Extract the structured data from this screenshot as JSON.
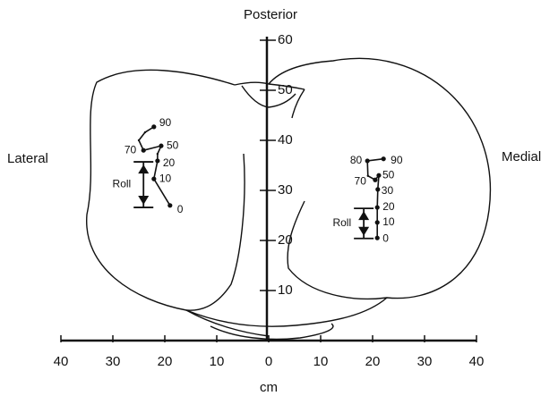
{
  "title_top": "Posterior",
  "left_label": "Lateral",
  "right_label": "Medial",
  "x_axis": {
    "label": "cm",
    "ticks": [
      {
        "value": -40,
        "label": "40"
      },
      {
        "value": -30,
        "label": "30"
      },
      {
        "value": -20,
        "label": "20"
      },
      {
        "value": -10,
        "label": "10"
      },
      0,
      10,
      20,
      30,
      40
    ]
  },
  "y_axis": {
    "ticks": [
      10,
      20,
      30,
      40,
      50,
      60
    ]
  },
  "paths": [
    {
      "roll_label": "Roll",
      "roll_x": -24.1,
      "roll": [
        35.7,
        26.6
      ],
      "points": [
        {
          "x": -22.1,
          "y": 42.7,
          "label": "90"
        },
        {
          "x": -23.8,
          "y": 41.6,
          "label": null
        },
        {
          "x": -25.0,
          "y": 40.0,
          "label": null
        },
        {
          "x": -24.1,
          "y": 38.0,
          "label": "70"
        },
        {
          "x": -20.7,
          "y": 38.9,
          "label": "50"
        },
        {
          "x": -21.4,
          "y": 37.3,
          "label": null
        },
        {
          "x": -21.4,
          "y": 35.9,
          "label": "20"
        },
        {
          "x": -22.1,
          "y": 32.3,
          "label": "10"
        },
        {
          "x": -19.0,
          "y": 27.0,
          "label": "0"
        }
      ]
    },
    {
      "roll_label": "Roll",
      "roll_x": 18.3,
      "roll": [
        26.4,
        20.4
      ],
      "points": [
        {
          "x": 22.1,
          "y": 36.3,
          "label": "90"
        },
        {
          "x": 19.0,
          "y": 35.9,
          "label": "80"
        },
        {
          "x": 19.1,
          "y": 32.9,
          "label": null
        },
        {
          "x": 20.5,
          "y": 32.1,
          "label": "70"
        },
        {
          "x": 21.2,
          "y": 33.0,
          "label": "50"
        },
        {
          "x": 21.0,
          "y": 30.2,
          "label": "30"
        },
        {
          "x": 20.9,
          "y": 26.6,
          "label": "20"
        },
        {
          "x": 20.9,
          "y": 23.6,
          "label": "10"
        },
        {
          "x": 20.9,
          "y": 20.5,
          "label": "0"
        }
      ]
    }
  ]
}
